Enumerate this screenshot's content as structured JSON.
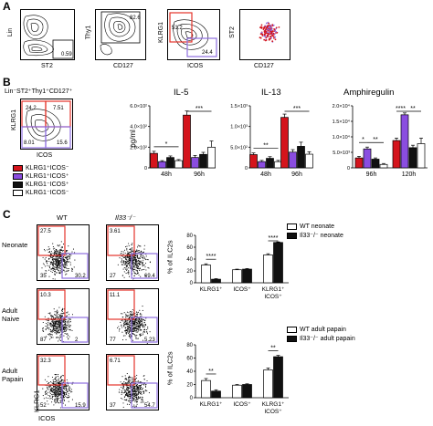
{
  "panels": {
    "a": "A",
    "b": "B",
    "c": "C"
  },
  "colors": {
    "red": "#d4141c",
    "purple": "#8a4de0",
    "black": "#111111",
    "white": "#ffffff",
    "box_red": "#e4332a",
    "box_purple": "#8e6ee0"
  },
  "panel_a": {
    "plots": [
      {
        "xlabel": "ST2",
        "ylabel": "Lin",
        "gate_value": "0.59"
      },
      {
        "xlabel": "CD127",
        "ylabel": "Thy1",
        "gate_value": "82.6"
      },
      {
        "xlabel": "ICOS",
        "ylabel": "KLRG1",
        "gate_values": [
          "51.2",
          "24.4"
        ]
      },
      {
        "xlabel": "CD127",
        "ylabel": "ST2"
      }
    ]
  },
  "panel_b": {
    "gating_label": "Lin⁻ST2⁺Thy1⁺CD127⁺",
    "flow": {
      "xlabel": "ICOS",
      "ylabel": "KLRG1",
      "quadrants": [
        "24.2",
        "7.51",
        "8.01",
        "15.6"
      ]
    },
    "legend": [
      {
        "label": "KLRG1⁺ICOS⁻",
        "color_key": "red"
      },
      {
        "label": "KLRG1⁺ICOS⁺",
        "color_key": "purple"
      },
      {
        "label": "KLRG1⁻ICOS⁺",
        "color_key": "black"
      },
      {
        "label": "KLRG1⁻ICOS⁻",
        "color_key": "white"
      }
    ],
    "ylabel": "pg/ml"
  },
  "chart_data": [
    {
      "type": "bar",
      "title": "IL-5",
      "ylabel": "pg/ml",
      "categories": [
        "48h",
        "96h"
      ],
      "yticks": [
        "0",
        "2.0×10²",
        "4.0×10²",
        "6.0×10²"
      ],
      "ylim": [
        0,
        600
      ],
      "series": [
        {
          "color": "red",
          "values": [
            140,
            510
          ],
          "errors": [
            20,
            40
          ]
        },
        {
          "color": "purple",
          "values": [
            60,
            100
          ],
          "errors": [
            10,
            20
          ]
        },
        {
          "color": "black",
          "values": [
            100,
            130
          ],
          "errors": [
            15,
            20
          ]
        },
        {
          "color": "white",
          "values": [
            70,
            200
          ],
          "errors": [
            10,
            60
          ]
        }
      ],
      "significance": [
        {
          "group": 0,
          "label": "*"
        },
        {
          "group": 1,
          "label": "***"
        }
      ]
    },
    {
      "type": "bar",
      "title": "IL-13",
      "categories": [
        "48h",
        "96h"
      ],
      "yticks": [
        "0",
        "5.0×10²",
        "1.0×10³",
        "1.5×10³"
      ],
      "ylim": [
        0,
        1500
      ],
      "series": [
        {
          "color": "red",
          "values": [
            320,
            1220
          ],
          "errors": [
            40,
            80
          ]
        },
        {
          "color": "purple",
          "values": [
            150,
            380
          ],
          "errors": [
            30,
            60
          ]
        },
        {
          "color": "black",
          "values": [
            230,
            520
          ],
          "errors": [
            40,
            100
          ]
        },
        {
          "color": "white",
          "values": [
            150,
            330
          ],
          "errors": [
            30,
            60
          ]
        }
      ],
      "significance": [
        {
          "group": 0,
          "label": "**"
        },
        {
          "group": 1,
          "label": "***"
        }
      ]
    },
    {
      "type": "bar",
      "title": "Amphiregulin",
      "categories": [
        "96h",
        "120h"
      ],
      "yticks": [
        "0",
        "5.0×10³",
        "1.0×10⁴",
        "1.5×10⁴",
        "2.0×10⁴"
      ],
      "ylim": [
        0,
        20000
      ],
      "series": [
        {
          "color": "red",
          "values": [
            3200,
            8800
          ],
          "errors": [
            500,
            800
          ]
        },
        {
          "color": "purple",
          "values": [
            6100,
            17100
          ],
          "errors": [
            600,
            600
          ]
        },
        {
          "color": "black",
          "values": [
            2800,
            6500
          ],
          "errors": [
            400,
            800
          ]
        },
        {
          "color": "white",
          "values": [
            1100,
            7800
          ],
          "errors": [
            300,
            1800
          ]
        }
      ],
      "significance": [
        {
          "group": 0,
          "label": "*"
        },
        {
          "group": 0,
          "label": "**"
        },
        {
          "group": 1,
          "label": "****"
        },
        {
          "group": 1,
          "label": "**"
        }
      ]
    },
    {
      "type": "bar",
      "ylabel": "% of ILC2s",
      "categories": [
        "KLRG1⁺",
        "ICOS⁺",
        "KLRG1⁺ ICOS⁺"
      ],
      "yticks": [
        "0",
        "20",
        "40",
        "60",
        "80"
      ],
      "ylim": [
        0,
        80
      ],
      "series": [
        {
          "name": "WT neonate",
          "color": "white",
          "values": [
            30,
            22,
            47
          ],
          "errors": [
            2,
            1,
            2
          ]
        },
        {
          "name": "Il33⁻/⁻ neonate",
          "color": "black",
          "values": [
            6,
            23,
            68
          ],
          "errors": [
            1,
            1,
            1
          ]
        }
      ],
      "significance": [
        {
          "group": 0,
          "label": "****"
        },
        {
          "group": 2,
          "label": "****"
        }
      ]
    },
    {
      "type": "bar",
      "ylabel": "% of ILC2s",
      "categories": [
        "KLRG1⁺",
        "ICOS⁺",
        "KLRG1⁺ ICOS⁺"
      ],
      "yticks": [
        "0",
        "20",
        "40",
        "60",
        "80"
      ],
      "ylim": [
        0,
        80
      ],
      "series": [
        {
          "name": "WT adult papain",
          "color": "white",
          "values": [
            26,
            19,
            42
          ],
          "errors": [
            3,
            1,
            3
          ]
        },
        {
          "name": "Il33⁻/⁻ adult papain",
          "color": "black",
          "values": [
            10,
            20,
            62
          ],
          "errors": [
            2,
            1,
            2
          ]
        }
      ],
      "significance": [
        {
          "group": 0,
          "label": "**"
        },
        {
          "group": 2,
          "label": "**"
        }
      ]
    }
  ],
  "panel_c": {
    "col_headers": [
      "WT",
      "Il33⁻/⁻"
    ],
    "row_labels": [
      "Neonate",
      "Adult\nNaive",
      "Adult\nPapain"
    ],
    "xlabel": "ICOS",
    "ylabel": "KLRG1",
    "plots": [
      {
        "tl": "27.5",
        "bl": "35",
        "br": "30.2"
      },
      {
        "tl": "3.61",
        "bl": "27",
        "br": "69.4"
      },
      {
        "tl": "10.3",
        "bl": "87",
        "br": "2"
      },
      {
        "tl": "11.1",
        "bl": "77",
        "br": "5.23"
      },
      {
        "tl": "32.3",
        "bl": "52",
        "br": "15.9"
      },
      {
        "tl": "6.71",
        "bl": "37",
        "br": "54.7"
      }
    ]
  }
}
